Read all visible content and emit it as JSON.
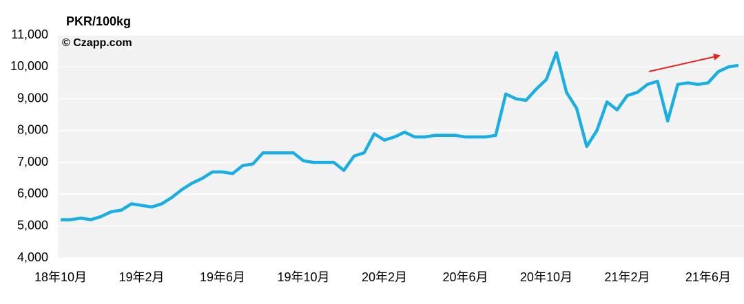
{
  "chart_data": {
    "type": "line",
    "y_label": "PKR/100kg",
    "watermark": "© Czapp.com",
    "categories": [
      "18年10月",
      null,
      null,
      null,
      null,
      null,
      null,
      null,
      "19年2月",
      null,
      null,
      null,
      null,
      null,
      null,
      null,
      "19年6月",
      null,
      null,
      null,
      null,
      null,
      null,
      null,
      "19年10月",
      null,
      null,
      null,
      null,
      null,
      null,
      null,
      "20年2月",
      null,
      null,
      null,
      null,
      null,
      null,
      null,
      "20年6月",
      null,
      null,
      null,
      null,
      null,
      null,
      null,
      "20年10月",
      null,
      null,
      null,
      null,
      null,
      null,
      null,
      "21年2月",
      null,
      null,
      null,
      null,
      null,
      null,
      null,
      "21年6月",
      null,
      null,
      null
    ],
    "series": [
      {
        "color": "#1aaee3",
        "values": [
          5200,
          5200,
          5250,
          5200,
          5300,
          5450,
          5500,
          5700,
          5650,
          5600,
          5700,
          5900,
          6150,
          6350,
          6500,
          6700,
          6700,
          6650,
          6900,
          6950,
          7300,
          7300,
          7300,
          7300,
          7050,
          7000,
          7000,
          7000,
          6750,
          7200,
          7300,
          7900,
          7700,
          7800,
          7950,
          7800,
          7800,
          7850,
          7850,
          7850,
          7800,
          7800,
          7800,
          7850,
          9150,
          9000,
          8950,
          9300,
          9600,
          10450,
          9200,
          8700,
          7500,
          8000,
          8900,
          8650,
          9100,
          9200,
          9450,
          9550,
          8300,
          9450,
          9500,
          9450,
          9500,
          9850,
          10000,
          10050
        ]
      }
    ],
    "ylim": [
      4000,
      11000
    ],
    "yticks": [
      {
        "value": 4000,
        "label": "4,000"
      },
      {
        "value": 5000,
        "label": "5,000"
      },
      {
        "value": 6000,
        "label": "6,000"
      },
      {
        "value": 7000,
        "label": "7,000"
      },
      {
        "value": 8000,
        "label": "8,000"
      },
      {
        "value": 9000,
        "label": "9,000"
      },
      {
        "value": 10000,
        "label": "10,000"
      },
      {
        "value": 11000,
        "label": "11,000"
      }
    ],
    "grid": true
  }
}
